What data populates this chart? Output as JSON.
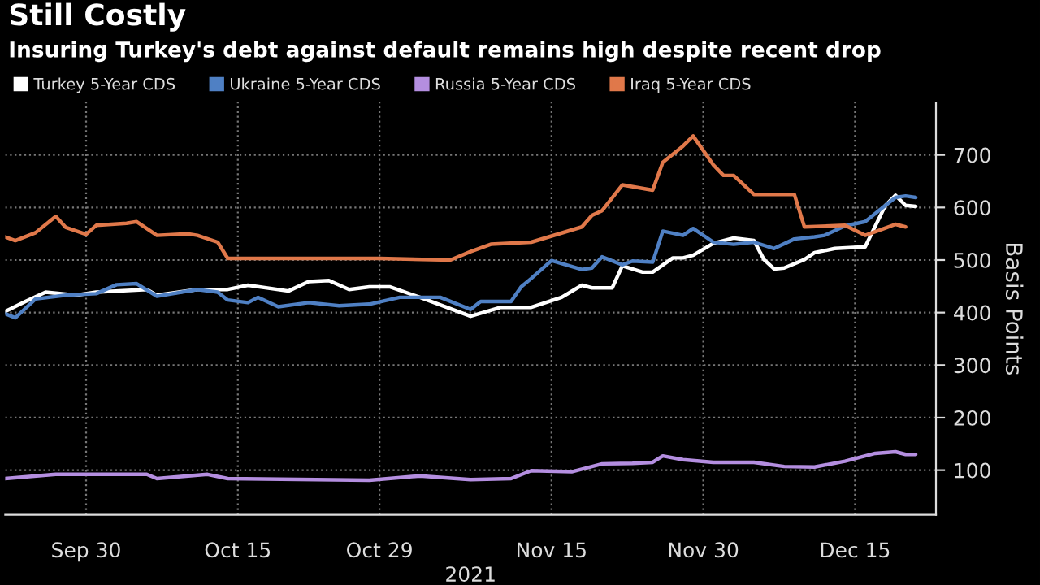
{
  "chart_data": {
    "type": "line",
    "title": "Still Costly",
    "subtitle": "Insuring Turkey's debt against default remains high despite recent drop",
    "xlabel": "2021",
    "ylabel": "Basis Points",
    "xlim": [
      "2021-09-22",
      "2021-12-23"
    ],
    "ylim": [
      15,
      800
    ],
    "xticks": [
      {
        "value": "2021-09-30",
        "label": "Sep 30"
      },
      {
        "value": "2021-10-15",
        "label": "Oct 15"
      },
      {
        "value": "2021-10-29",
        "label": "Oct 29"
      },
      {
        "value": "2021-11-15",
        "label": "Nov 15"
      },
      {
        "value": "2021-11-30",
        "label": "Nov 30"
      },
      {
        "value": "2021-12-15",
        "label": "Dec 15"
      }
    ],
    "yticks": [
      100,
      200,
      300,
      400,
      500,
      600,
      700
    ],
    "grid": true,
    "legend": "top left",
    "series": [
      {
        "name": "Turkey 5-Year CDS",
        "color": "#ffffff",
        "x": [
          "2021-09-22",
          "2021-09-24",
          "2021-09-26",
          "2021-09-29",
          "2021-10-01",
          "2021-10-06",
          "2021-10-07",
          "2021-10-11",
          "2021-10-14",
          "2021-10-16",
          "2021-10-20",
          "2021-10-22",
          "2021-10-24",
          "2021-10-26",
          "2021-10-28",
          "2021-10-30",
          "2021-11-02",
          "2021-11-07",
          "2021-11-10",
          "2021-11-13",
          "2021-11-16",
          "2021-11-18",
          "2021-11-19",
          "2021-11-21",
          "2021-11-22",
          "2021-11-24",
          "2021-11-25",
          "2021-11-27",
          "2021-11-28",
          "2021-11-29",
          "2021-12-01",
          "2021-12-03",
          "2021-12-05",
          "2021-12-06",
          "2021-12-07",
          "2021-12-08",
          "2021-12-10",
          "2021-12-11",
          "2021-12-13",
          "2021-12-16",
          "2021-12-18",
          "2021-12-19",
          "2021-12-20",
          "2021-12-21"
        ],
        "values": [
          402,
          421,
          439,
          433,
          439,
          444,
          433,
          444,
          444,
          452,
          441,
          459,
          461,
          444,
          449,
          449,
          429,
          393,
          410,
          410,
          429,
          452,
          447,
          447,
          489,
          477,
          477,
          504,
          504,
          509,
          532,
          542,
          537,
          501,
          483,
          485,
          501,
          514,
          522,
          525,
          604,
          623,
          604,
          602
        ]
      },
      {
        "name": "Ukraine 5-Year CDS",
        "color": "#4f80c4",
        "x": [
          "2021-09-22",
          "2021-09-23",
          "2021-09-25",
          "2021-09-28",
          "2021-10-01",
          "2021-10-03",
          "2021-10-05",
          "2021-10-07",
          "2021-10-11",
          "2021-10-13",
          "2021-10-14",
          "2021-10-16",
          "2021-10-17",
          "2021-10-19",
          "2021-10-22",
          "2021-10-25",
          "2021-10-28",
          "2021-10-31",
          "2021-11-04",
          "2021-11-07",
          "2021-11-08",
          "2021-11-11",
          "2021-11-12",
          "2021-11-13",
          "2021-11-15",
          "2021-11-18",
          "2021-11-19",
          "2021-11-20",
          "2021-11-22",
          "2021-11-23",
          "2021-11-25",
          "2021-11-26",
          "2021-11-28",
          "2021-11-29",
          "2021-12-01",
          "2021-12-03",
          "2021-12-05",
          "2021-12-07",
          "2021-12-09",
          "2021-12-11",
          "2021-12-12",
          "2021-12-14",
          "2021-12-16",
          "2021-12-18",
          "2021-12-19",
          "2021-12-20",
          "2021-12-21"
        ],
        "values": [
          398,
          390,
          426,
          433,
          436,
          453,
          455,
          431,
          444,
          439,
          424,
          419,
          429,
          411,
          419,
          413,
          416,
          429,
          429,
          406,
          421,
          421,
          449,
          465,
          499,
          482,
          485,
          506,
          491,
          498,
          496,
          555,
          547,
          560,
          534,
          530,
          534,
          522,
          540,
          544,
          547,
          565,
          573,
          604,
          619,
          622,
          619
        ]
      },
      {
        "name": "Russia 5-Year CDS",
        "color": "#b48ee0",
        "x": [
          "2021-09-22",
          "2021-09-27",
          "2021-10-06",
          "2021-10-07",
          "2021-10-12",
          "2021-10-14",
          "2021-10-28",
          "2021-11-02",
          "2021-11-07",
          "2021-11-11",
          "2021-11-13",
          "2021-11-17",
          "2021-11-20",
          "2021-11-23",
          "2021-11-25",
          "2021-11-26",
          "2021-11-28",
          "2021-12-01",
          "2021-12-05",
          "2021-12-08",
          "2021-12-11",
          "2021-12-14",
          "2021-12-17",
          "2021-12-19",
          "2021-12-20",
          "2021-12-21"
        ],
        "values": [
          84,
          92,
          92,
          84,
          92,
          84,
          81,
          89,
          82,
          84,
          99,
          97,
          112,
          113,
          115,
          127,
          120,
          115,
          115,
          107,
          106,
          117,
          132,
          135,
          130,
          130
        ]
      },
      {
        "name": "Iraq 5-Year CDS",
        "color": "#e0784a",
        "x": [
          "2021-09-22",
          "2021-09-23",
          "2021-09-25",
          "2021-09-27",
          "2021-09-28",
          "2021-09-30",
          "2021-10-01",
          "2021-10-04",
          "2021-10-05",
          "2021-10-07",
          "2021-10-10",
          "2021-10-11",
          "2021-10-13",
          "2021-10-14",
          "2021-10-29",
          "2021-11-05",
          "2021-11-07",
          "2021-11-09",
          "2021-11-13",
          "2021-11-18",
          "2021-11-19",
          "2021-11-20",
          "2021-11-22",
          "2021-11-25",
          "2021-11-26",
          "2021-11-28",
          "2021-11-29",
          "2021-12-01",
          "2021-12-02",
          "2021-12-03",
          "2021-12-05",
          "2021-12-09",
          "2021-12-10",
          "2021-12-14",
          "2021-12-16",
          "2021-12-18",
          "2021-12-19",
          "2021-12-20"
        ],
        "values": [
          544,
          537,
          552,
          583,
          562,
          549,
          566,
          570,
          573,
          547,
          550,
          547,
          534,
          503,
          503,
          500,
          516,
          530,
          534,
          563,
          585,
          594,
          643,
          633,
          686,
          717,
          736,
          681,
          661,
          661,
          625,
          625,
          563,
          566,
          547,
          561,
          568,
          563
        ]
      }
    ]
  }
}
